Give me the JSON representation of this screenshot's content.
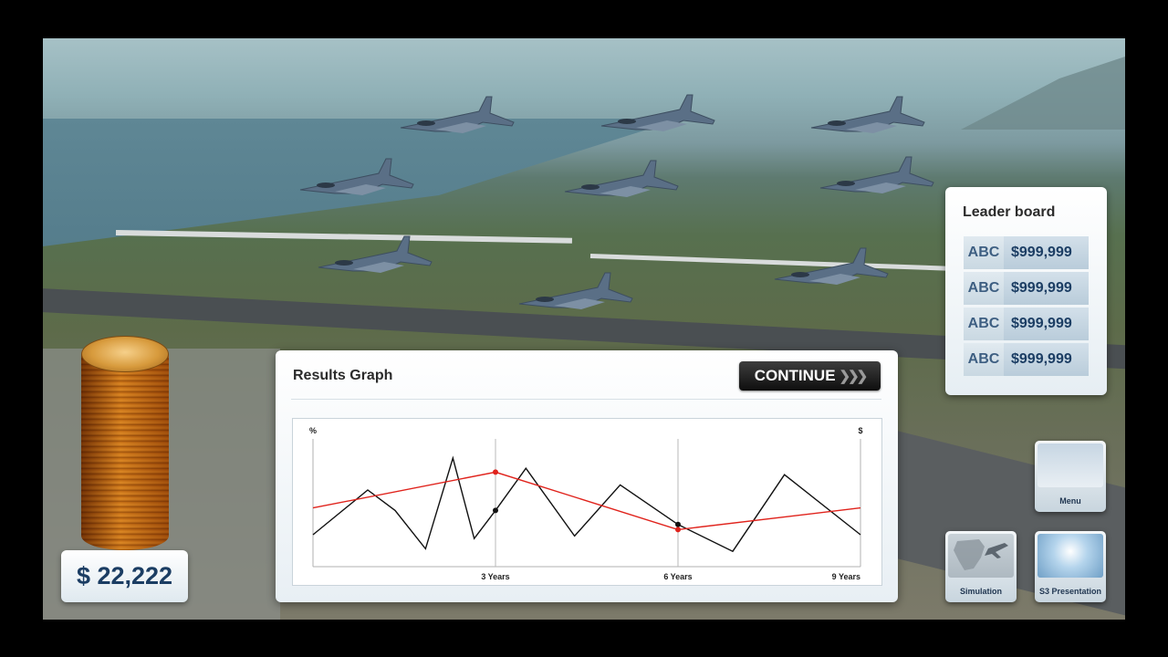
{
  "money": {
    "amount": "$ 22,222"
  },
  "leaderboard": {
    "title": "Leader board",
    "rows": [
      {
        "name": "ABC",
        "score": "$999,999"
      },
      {
        "name": "ABC",
        "score": "$999,999"
      },
      {
        "name": "ABC",
        "score": "$999,999"
      },
      {
        "name": "ABC",
        "score": "$999,999"
      }
    ]
  },
  "results": {
    "title": "Results Graph",
    "continue_label": "CONTINUE",
    "continue_icon": "double-chevron-right-icon"
  },
  "chart_data": {
    "type": "line",
    "title": "",
    "y_left_label": "%",
    "y_right_label": "$",
    "x_ticks": [
      {
        "x": 3,
        "label": "3 Years"
      },
      {
        "x": 6,
        "label": "6 Years"
      },
      {
        "x": 9,
        "label": "9 Years"
      }
    ],
    "xlim": [
      0,
      9
    ],
    "ylim": [
      0,
      100
    ],
    "grid": "vertical lines at 3 and 6 years",
    "series": [
      {
        "color": "#111111",
        "x": [
          0,
          0.9,
          1.35,
          1.85,
          2.3,
          2.65,
          3.0,
          3.5,
          4.3,
          5.05,
          6.0,
          6.9,
          7.75,
          9.0
        ],
        "y": [
          25,
          60,
          44,
          14,
          85,
          22,
          44,
          77,
          24,
          64,
          33,
          12,
          72,
          25
        ],
        "markers": [
          {
            "x": 3.0,
            "y": 44
          },
          {
            "x": 6.0,
            "y": 33
          }
        ]
      },
      {
        "color": "#e0231c",
        "x": [
          0,
          3.0,
          6.0,
          9.0
        ],
        "y": [
          46,
          74,
          29,
          46
        ],
        "markers": [
          {
            "x": 3.0,
            "y": 74
          },
          {
            "x": 6.0,
            "y": 29
          }
        ]
      }
    ]
  },
  "menu_buttons": [
    {
      "id": "menu",
      "label": "Menu"
    },
    {
      "id": "simulation",
      "label": "Simulation"
    },
    {
      "id": "presentation",
      "label": "S3 Presentation"
    }
  ]
}
